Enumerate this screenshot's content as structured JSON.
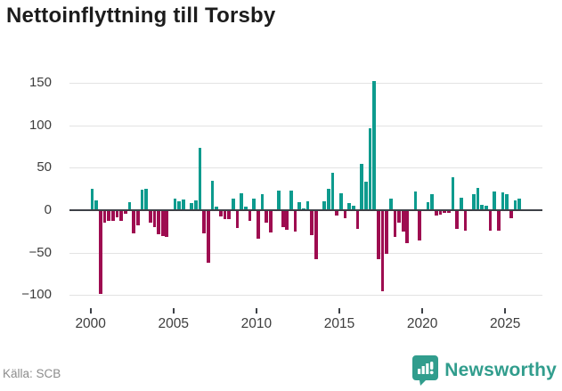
{
  "header": {
    "title": "Nettoinflyttning till Torsby"
  },
  "footer": {
    "source": "Källa: SCB",
    "brand": "Newsworthy"
  },
  "colors": {
    "positive_bar": "#0d9b8e",
    "negative_bar": "#9e0c50",
    "gridline": "#e3e3e3",
    "zero_line": "#3d4147",
    "axis_text": "#3d3d3d",
    "title_text": "#1c1c1c",
    "source_text": "#8c8c8c",
    "brand_teal": "#319d8d"
  },
  "chart_data": {
    "type": "bar",
    "title": "Nettoinflyttning till Torsby",
    "xlabel": "",
    "ylabel": "",
    "y_ticks": [
      150,
      100,
      50,
      0,
      -50,
      -100
    ],
    "ylim": [
      -115,
      168
    ],
    "x_tick_years": [
      2000,
      2005,
      2010,
      2015,
      2020,
      2025
    ],
    "grid": "horizontal",
    "legend": false,
    "x": [
      "2000 Q1",
      "2000 Q2",
      "2000 Q3",
      "2000 Q4",
      "2001 Q1",
      "2001 Q2",
      "2001 Q3",
      "2001 Q4",
      "2002 Q1",
      "2002 Q2",
      "2002 Q3",
      "2002 Q4",
      "2003 Q1",
      "2003 Q2",
      "2003 Q3",
      "2003 Q4",
      "2004 Q1",
      "2004 Q2",
      "2004 Q3",
      "2004 Q4",
      "2005 Q1",
      "2005 Q2",
      "2005 Q3",
      "2005 Q4",
      "2006 Q1",
      "2006 Q2",
      "2006 Q3",
      "2006 Q4",
      "2007 Q1",
      "2007 Q2",
      "2007 Q3",
      "2007 Q4",
      "2008 Q1",
      "2008 Q2",
      "2008 Q3",
      "2008 Q4",
      "2009 Q1",
      "2009 Q2",
      "2009 Q3",
      "2009 Q4",
      "2010 Q1",
      "2010 Q2",
      "2010 Q3",
      "2010 Q4",
      "2011 Q1",
      "2011 Q2",
      "2011 Q3",
      "2011 Q4",
      "2012 Q1",
      "2012 Q2",
      "2012 Q3",
      "2012 Q4",
      "2013 Q1",
      "2013 Q2",
      "2013 Q3",
      "2013 Q4",
      "2014 Q1",
      "2014 Q2",
      "2014 Q3",
      "2014 Q4",
      "2015 Q1",
      "2015 Q2",
      "2015 Q3",
      "2015 Q4",
      "2016 Q1",
      "2016 Q2",
      "2016 Q3",
      "2016 Q4",
      "2017 Q1",
      "2017 Q2",
      "2017 Q3",
      "2017 Q4",
      "2018 Q1",
      "2018 Q2",
      "2018 Q3",
      "2018 Q4",
      "2019 Q1",
      "2019 Q2",
      "2019 Q3",
      "2019 Q4",
      "2020 Q1",
      "2020 Q2",
      "2020 Q3",
      "2020 Q4",
      "2021 Q1",
      "2021 Q2",
      "2021 Q3",
      "2021 Q4",
      "2022 Q1",
      "2022 Q2",
      "2022 Q3",
      "2022 Q4",
      "2023 Q1",
      "2023 Q2",
      "2023 Q3",
      "2023 Q4",
      "2024 Q1",
      "2024 Q2",
      "2024 Q3",
      "2024 Q4",
      "2025 Q1",
      "2025 Q2",
      "2025 Q3",
      "2025 Q4"
    ],
    "values": [
      25,
      12,
      -98,
      -15,
      -13,
      -13,
      -8,
      -13,
      -4,
      9,
      -27,
      -18,
      24,
      25,
      -15,
      -20,
      -28,
      -30,
      -31,
      0,
      14,
      11,
      13,
      0,
      8,
      12,
      73,
      -27,
      -62,
      35,
      4,
      -7,
      -10,
      -10,
      14,
      -21,
      20,
      4,
      -13,
      14,
      -33,
      19,
      -15,
      -26,
      0,
      23,
      -20,
      -23,
      23,
      -25,
      9,
      2,
      11,
      -29,
      -58,
      0,
      11,
      25,
      44,
      -6,
      20,
      -9,
      8,
      5,
      -22,
      55,
      34,
      96,
      152,
      -58,
      -95,
      -51,
      14,
      -31,
      -15,
      -25,
      -39,
      0,
      22,
      -36,
      0,
      10,
      19,
      -6,
      -5,
      -3,
      -3,
      39,
      -22,
      15,
      -24,
      0,
      19,
      26,
      6,
      5,
      -24,
      22,
      -24,
      21,
      19,
      -9,
      12,
      14
    ]
  }
}
